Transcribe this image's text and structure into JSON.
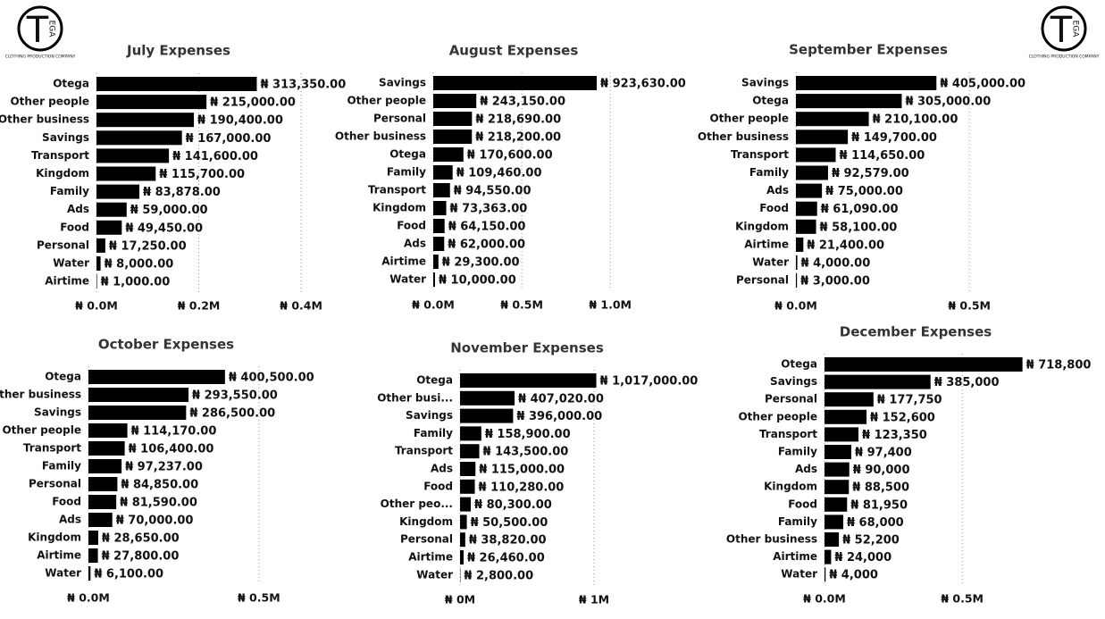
{
  "logo": {
    "mark": "T",
    "letters": "EGA",
    "caption": "CLOTHING PRODUCTION COMPANY"
  },
  "chart_data": [
    {
      "type": "bar",
      "orientation": "horizontal",
      "title": "July Expenses",
      "color": "#000000",
      "grid": true,
      "categories": [
        "Otega",
        "Other people",
        "Other business",
        "Savings",
        "Transport",
        "Kingdom",
        "Family",
        "Ads",
        "Food",
        "Personal",
        "Water",
        "Airtime"
      ],
      "values": [
        313350,
        215000,
        190400,
        167000,
        141600,
        115700,
        83878,
        59000,
        49450,
        17250,
        8000,
        1000
      ],
      "value_labels": [
        "₦ 313,350.00",
        "₦ 215,000.00",
        "₦ 190,400.00",
        "₦ 167,000.00",
        "₦ 141,600.00",
        "₦ 115,700.00",
        "₦ 83,878.00",
        "₦ 59,000.00",
        "₦ 49,450.00",
        "₦ 17,250.00",
        "₦ 8,000.00",
        "₦ 1,000.00"
      ],
      "xlim": [
        0,
        440000
      ],
      "xticks": [
        {
          "value": 0,
          "label": "₦ 0.0M"
        },
        {
          "value": 200000,
          "label": "₦ 0.2M"
        },
        {
          "value": 400000,
          "label": "₦ 0.4M"
        }
      ]
    },
    {
      "type": "bar",
      "orientation": "horizontal",
      "title": "August Expenses",
      "color": "#000000",
      "grid": true,
      "categories": [
        "Savings",
        "Other people",
        "Personal",
        "Other business",
        "Otega",
        "Family",
        "Transport",
        "Kingdom",
        "Food",
        "Ads",
        "Airtime",
        "Water"
      ],
      "values": [
        923630,
        243150,
        218690,
        218200,
        170600,
        109460,
        94550,
        73363,
        64150,
        62000,
        29300,
        10000
      ],
      "value_labels": [
        "₦ 923,630.00",
        "₦ 243,150.00",
        "₦ 218,690.00",
        "₦ 218,200.00",
        "₦ 170,600.00",
        "₦ 109,460.00",
        "₦ 94,550.00",
        "₦ 73,363.00",
        "₦ 64,150.00",
        "₦ 62,000.00",
        "₦ 29,300.00",
        "₦ 10,000.00"
      ],
      "xlim": [
        0,
        1100000
      ],
      "xticks": [
        {
          "value": 0,
          "label": "₦ 0.0M"
        },
        {
          "value": 500000,
          "label": "₦ 0.5M"
        },
        {
          "value": 1000000,
          "label": "₦ 1.0M"
        }
      ]
    },
    {
      "type": "bar",
      "orientation": "horizontal",
      "title": "September Expenses",
      "color": "#000000",
      "grid": true,
      "categories": [
        "Savings",
        "Otega",
        "Other people",
        "Other business",
        "Transport",
        "Family",
        "Ads",
        "Food",
        "Kingdom",
        "Airtime",
        "Water",
        "Personal"
      ],
      "values": [
        405000,
        305000,
        210100,
        149700,
        114650,
        92579,
        75000,
        61090,
        58100,
        21400,
        4000,
        3000
      ],
      "value_labels": [
        "₦ 405,000.00",
        "₦ 305,000.00",
        "₦ 210,100.00",
        "₦ 149,700.00",
        "₦ 114,650.00",
        "₦ 92,579.00",
        "₦ 75,000.00",
        "₦ 61,090.00",
        "₦ 58,100.00",
        "₦ 21,400.00",
        "₦ 4,000.00",
        "₦ 3,000.00"
      ],
      "xlim": [
        0,
        600000
      ],
      "xticks": [
        {
          "value": 0,
          "label": "₦ 0.0M"
        },
        {
          "value": 500000,
          "label": "₦ 0.5M"
        }
      ]
    },
    {
      "type": "bar",
      "orientation": "horizontal",
      "title": "October Expenses",
      "color": "#000000",
      "grid": true,
      "categories": [
        "Otega",
        "Other business",
        "Savings",
        "Other people",
        "Transport",
        "Family",
        "Personal",
        "Food",
        "Ads",
        "Kingdom",
        "Airtime",
        "Water"
      ],
      "values": [
        400500,
        293550,
        286500,
        114170,
        106400,
        97237,
        84850,
        81590,
        70000,
        28650,
        27800,
        6100
      ],
      "value_labels": [
        "₦ 400,500.00",
        "₦ 293,550.00",
        "₦ 286,500.00",
        "₦ 114,170.00",
        "₦ 106,400.00",
        "₦ 97,237.00",
        "₦ 84,850.00",
        "₦ 81,590.00",
        "₦ 70,000.00",
        "₦ 28,650.00",
        "₦ 27,800.00",
        "₦ 6,100.00"
      ],
      "xlim": [
        0,
        600000
      ],
      "xticks": [
        {
          "value": 0,
          "label": "₦ 0.0M"
        },
        {
          "value": 500000,
          "label": "₦ 0.5M"
        }
      ]
    },
    {
      "type": "bar",
      "orientation": "horizontal",
      "title": "November Expenses",
      "color": "#000000",
      "grid": true,
      "categories": [
        "Otega",
        "Other busi...",
        "Savings",
        "Family",
        "Transport",
        "Ads",
        "Food",
        "Other peo...",
        "Kingdom",
        "Personal",
        "Airtime",
        "Water"
      ],
      "values": [
        1017000,
        407020,
        396000,
        158900,
        143500,
        115000,
        110280,
        80300,
        50500,
        38820,
        26460,
        2800
      ],
      "value_labels": [
        "₦ 1,017,000.00",
        "₦ 407,020.00",
        "₦ 396,000.00",
        "₦ 158,900.00",
        "₦ 143,500.00",
        "₦ 115,000.00",
        "₦ 110,280.00",
        "₦ 80,300.00",
        "₦ 50,500.00",
        "₦ 38,820.00",
        "₦ 26,460.00",
        "₦ 2,800.00"
      ],
      "xlim": [
        0,
        1100000
      ],
      "xticks": [
        {
          "value": 0,
          "label": "₦ 0M"
        },
        {
          "value": 1000000,
          "label": "₦ 1M"
        }
      ]
    },
    {
      "type": "bar",
      "orientation": "horizontal",
      "title": "December Expenses",
      "color": "#000000",
      "grid": true,
      "categories": [
        "Otega",
        "Savings",
        "Personal",
        "Other people",
        "Transport",
        "Family",
        "Ads",
        "Kingdom",
        "Food",
        "Family",
        "Other business",
        "Airtime",
        "Water"
      ],
      "values": [
        718800,
        385000,
        177750,
        152600,
        123350,
        97400,
        90000,
        88500,
        81950,
        68000,
        52200,
        24000,
        4000
      ],
      "value_labels": [
        "₦ 718,800",
        "₦ 385,000",
        "₦ 177,750",
        "₦ 152,600",
        "₦ 123,350",
        "₦ 97,400",
        "₦ 90,000",
        "₦ 88,500",
        "₦ 81,950",
        "₦ 68,000",
        "₦ 52,200",
        "₦ 24,000",
        "₦ 4,000"
      ],
      "xlim": [
        0,
        600000
      ],
      "xticks": [
        {
          "value": 0,
          "label": "₦ 0.0M"
        },
        {
          "value": 500000,
          "label": "₦ 0.5M"
        }
      ]
    }
  ]
}
